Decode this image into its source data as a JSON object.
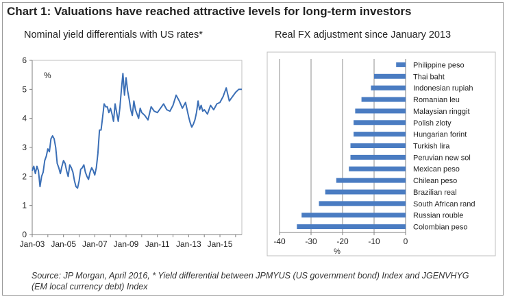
{
  "title": "Chart 1: Valuations have reached attractive levels for long-term investors",
  "source": "Source: JP Morgan, April 2016, * Yield differential between JPMYUS (US government bond) Index and JGENVHYG (EM local currency debt) Index",
  "colors": {
    "line": "#3b6fb6",
    "bar": "#4a7cc2",
    "axis": "#7f7f7f",
    "grid": "#8c8c8c"
  },
  "chart_data": [
    {
      "type": "line",
      "title": "Nominal yield differentials with US rates*",
      "unit_label": "%",
      "xlabel": "",
      "ylabel": "",
      "ylim": [
        0,
        6
      ],
      "yticks": [
        "0",
        "1",
        "2",
        "3",
        "4",
        "5",
        "6"
      ],
      "xticks": [
        "Jan-03",
        "Jan-05",
        "Jan-07",
        "Jan-09",
        "Jan-11",
        "Jan-13",
        "Jan-15"
      ],
      "xrange": [
        2003.0,
        2016.4
      ],
      "grid": false,
      "series": [
        {
          "x": [
            2003.0,
            2003.1,
            2003.2,
            2003.3,
            2003.4,
            2003.5,
            2003.6,
            2003.7,
            2003.8,
            2003.9,
            2004.0,
            2004.1,
            2004.2,
            2004.3,
            2004.4,
            2004.5,
            2004.6,
            2004.7,
            2004.8,
            2004.9,
            2005.0,
            2005.1,
            2005.2,
            2005.3,
            2005.4,
            2005.5,
            2005.6,
            2005.7,
            2005.8,
            2005.9,
            2006.0,
            2006.1,
            2006.2,
            2006.3,
            2006.4,
            2006.5,
            2006.6,
            2006.7,
            2006.8,
            2006.9,
            2007.0,
            2007.1,
            2007.2,
            2007.3,
            2007.4,
            2007.5,
            2007.6,
            2007.7,
            2007.8,
            2007.9,
            2008.0,
            2008.1,
            2008.2,
            2008.3,
            2008.4,
            2008.5,
            2008.6,
            2008.7,
            2008.8,
            2008.9,
            2009.0,
            2009.1,
            2009.2,
            2009.3,
            2009.4,
            2009.5,
            2009.6,
            2009.7,
            2009.8,
            2009.9,
            2010.0,
            2010.2,
            2010.4,
            2010.6,
            2010.8,
            2011.0,
            2011.2,
            2011.4,
            2011.6,
            2011.8,
            2012.0,
            2012.2,
            2012.4,
            2012.6,
            2012.8,
            2013.0,
            2013.1,
            2013.2,
            2013.3,
            2013.4,
            2013.5,
            2013.6,
            2013.7,
            2013.8,
            2013.9,
            2014.0,
            2014.2,
            2014.4,
            2014.6,
            2014.8,
            2015.0,
            2015.2,
            2015.4,
            2015.6,
            2015.8,
            2016.0,
            2016.2,
            2016.4
          ],
          "y": [
            2.2,
            2.35,
            2.1,
            2.35,
            2.2,
            1.65,
            2.0,
            2.15,
            2.55,
            2.7,
            2.95,
            2.85,
            3.3,
            3.4,
            3.3,
            3.0,
            2.45,
            2.3,
            2.1,
            2.35,
            2.55,
            2.45,
            2.2,
            2.0,
            2.4,
            2.3,
            2.15,
            1.85,
            1.65,
            1.6,
            1.85,
            2.25,
            2.3,
            2.4,
            2.15,
            2.0,
            1.9,
            2.15,
            2.3,
            2.2,
            2.05,
            2.3,
            2.8,
            3.6,
            3.6,
            4.05,
            4.5,
            4.4,
            4.4,
            4.2,
            4.35,
            4.15,
            3.9,
            4.5,
            4.2,
            3.9,
            4.35,
            5.0,
            5.55,
            4.8,
            5.4,
            4.95,
            4.65,
            4.3,
            4.1,
            4.6,
            4.3,
            4.15,
            4.0,
            4.35,
            4.2,
            4.1,
            3.95,
            4.4,
            4.25,
            4.2,
            4.35,
            4.5,
            4.3,
            4.25,
            4.45,
            4.8,
            4.6,
            4.35,
            4.55,
            4.05,
            3.85,
            3.7,
            3.8,
            3.95,
            4.2,
            4.6,
            4.3,
            4.45,
            4.25,
            4.3,
            4.15,
            4.45,
            4.3,
            4.5,
            4.55,
            4.75,
            5.05,
            4.6,
            4.75,
            4.9,
            5.0,
            5.0
          ]
        }
      ]
    },
    {
      "type": "bar",
      "orientation": "horizontal",
      "title": "Real FX adjustment since January 2013",
      "xlabel": "%",
      "xlim": [
        -40,
        0
      ],
      "xticks": [
        "-40",
        "-30",
        "-20",
        "-10",
        "0"
      ],
      "grid": true,
      "categories": [
        "Philippine peso",
        "Thai baht",
        "Indonesian rupiah",
        "Romanian leu",
        "Malaysian ringgit",
        "Polish zloty",
        "Hungarian forint",
        "Turkish lira",
        "Peruvian new sol",
        "Mexican peso",
        "Chilean peso",
        "Brazilian real",
        "South African rand",
        "Russian rouble",
        "Colombian peso"
      ],
      "values": [
        -3,
        -10,
        -11,
        -14,
        -16,
        -16.5,
        -16.5,
        -17.5,
        -17.5,
        -18,
        -22,
        -25.5,
        -27.5,
        -33,
        -34.5
      ]
    }
  ]
}
